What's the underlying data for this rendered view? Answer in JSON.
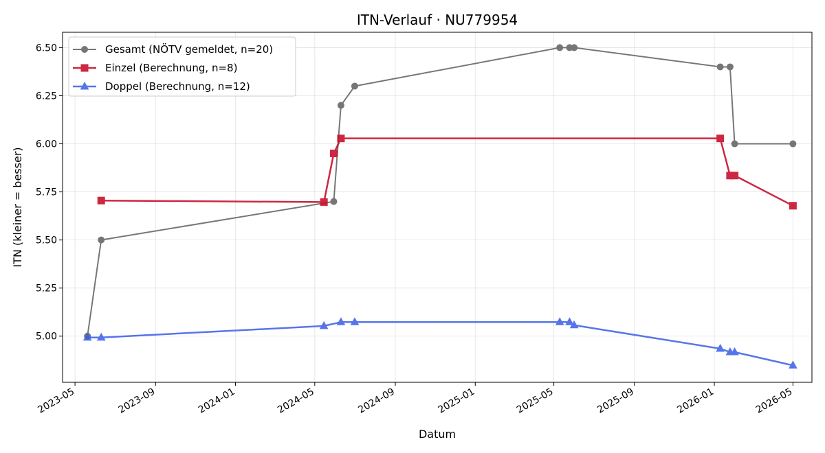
{
  "chart_data": {
    "type": "line",
    "title": "ITN-Verlauf · NU779954",
    "xlabel": "Datum",
    "ylabel": "ITN  (kleiner = besser)",
    "x_type": "date",
    "xlim": [
      "2023-04-12",
      "2026-05-30"
    ],
    "ylim": [
      4.76,
      6.58
    ],
    "x_ticks": [
      "2023-05-01",
      "2023-09-01",
      "2024-01-01",
      "2024-05-01",
      "2024-09-01",
      "2025-01-01",
      "2025-05-01",
      "2025-09-01",
      "2026-01-01",
      "2026-05-01"
    ],
    "x_tick_labels": [
      "2023-05",
      "2023-09",
      "2024-01",
      "2024-05",
      "2024-09",
      "2025-01",
      "2025-05",
      "2025-09",
      "2026-01",
      "2026-05"
    ],
    "y_ticks": [
      5.0,
      5.25,
      5.5,
      5.75,
      6.0,
      6.25,
      6.5
    ],
    "y_tick_labels": [
      "5.00",
      "5.25",
      "5.50",
      "5.75",
      "6.00",
      "6.25",
      "6.50"
    ],
    "grid": true,
    "legend_position": "top-left",
    "series": [
      {
        "name": "Gesamt (NÖTV gemeldet, n=20)",
        "color": "#555555",
        "marker": "circle",
        "points": [
          {
            "x": "2023-05-20",
            "y": 5.0
          },
          {
            "x": "2023-06-10",
            "y": 5.5
          },
          {
            "x": "2024-05-30",
            "y": 5.7
          },
          {
            "x": "2024-06-10",
            "y": 6.2
          },
          {
            "x": "2024-07-01",
            "y": 6.3
          },
          {
            "x": "2025-05-10",
            "y": 6.5
          },
          {
            "x": "2025-05-25",
            "y": 6.5
          },
          {
            "x": "2025-06-01",
            "y": 6.5
          },
          {
            "x": "2026-01-10",
            "y": 6.4
          },
          {
            "x": "2026-01-25",
            "y": 6.4
          },
          {
            "x": "2026-02-01",
            "y": 6.0
          },
          {
            "x": "2026-05-01",
            "y": 6.0
          }
        ]
      },
      {
        "name": "Einzel (Berechnung, n=8)",
        "color": "#c8102e",
        "marker": "square",
        "points": [
          {
            "x": "2023-06-10",
            "y": 5.705
          },
          {
            "x": "2024-05-15",
            "y": 5.697
          },
          {
            "x": "2024-05-30",
            "y": 5.95
          },
          {
            "x": "2024-06-10",
            "y": 6.028
          },
          {
            "x": "2026-01-10",
            "y": 6.028
          },
          {
            "x": "2026-01-25",
            "y": 5.835
          },
          {
            "x": "2026-02-01",
            "y": 5.835
          },
          {
            "x": "2026-05-01",
            "y": 5.678
          }
        ]
      },
      {
        "name": "Doppel (Berechnung, n=12)",
        "color": "#3a5ee8",
        "marker": "triangle",
        "points": [
          {
            "x": "2023-05-20",
            "y": 4.993
          },
          {
            "x": "2023-06-10",
            "y": 4.993
          },
          {
            "x": "2024-05-15",
            "y": 5.053
          },
          {
            "x": "2024-06-10",
            "y": 5.073
          },
          {
            "x": "2024-07-01",
            "y": 5.073
          },
          {
            "x": "2025-05-10",
            "y": 5.073
          },
          {
            "x": "2025-05-25",
            "y": 5.073
          },
          {
            "x": "2025-06-01",
            "y": 5.057
          },
          {
            "x": "2026-01-10",
            "y": 4.935
          },
          {
            "x": "2026-01-25",
            "y": 4.917
          },
          {
            "x": "2026-02-01",
            "y": 4.917
          },
          {
            "x": "2026-05-01",
            "y": 4.848
          }
        ]
      }
    ]
  }
}
